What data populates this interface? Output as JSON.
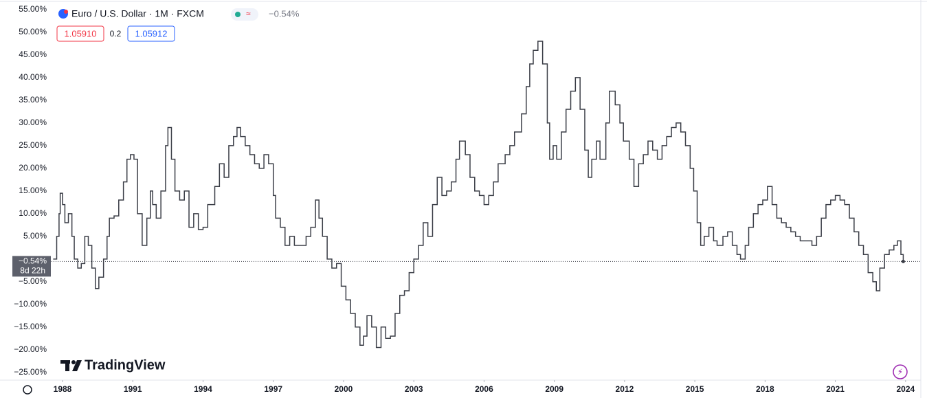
{
  "chart_data": {
    "type": "line",
    "step": true,
    "title": "Euro / U.S. Dollar · 1M · FXCM",
    "change_label": "−0.54%",
    "bid": "1.05910",
    "spread": "0.2",
    "ask": "1.05912",
    "last_value": -0.54,
    "last_label": "−0.54%",
    "countdown": "8d 22h",
    "brand": "TradingView",
    "color": "#3a3d46",
    "xlim": [
      1987.53,
      2024.65
    ],
    "xticks": [
      1988,
      1991,
      1994,
      1997,
      2000,
      2003,
      2006,
      2009,
      2012,
      2015,
      2018,
      2021,
      2024
    ],
    "ylim": [
      -27,
      57.1
    ],
    "yticks": [
      {
        "value": 55,
        "label": "55.00%"
      },
      {
        "value": 50,
        "label": "50.00%"
      },
      {
        "value": 45,
        "label": "45.00%"
      },
      {
        "value": 40,
        "label": "40.00%"
      },
      {
        "value": 35,
        "label": "35.00%"
      },
      {
        "value": 30,
        "label": "30.00%"
      },
      {
        "value": 25,
        "label": "25.00%"
      },
      {
        "value": 20,
        "label": "20.00%"
      },
      {
        "value": 15,
        "label": "15.00%"
      },
      {
        "value": 10,
        "label": "10.00%"
      },
      {
        "value": 5,
        "label": "5.00%"
      },
      {
        "value": -5,
        "label": "−5.00%"
      },
      {
        "value": -10,
        "label": "−10.00%"
      },
      {
        "value": -15,
        "label": "−15.00%"
      },
      {
        "value": -20,
        "label": "−20.00%"
      },
      {
        "value": -25,
        "label": "−25.00%"
      }
    ],
    "x": [
      1987.6,
      1987.75,
      1987.85,
      1987.9,
      1988.0,
      1988.1,
      1988.25,
      1988.4,
      1988.5,
      1988.65,
      1988.8,
      1988.95,
      1989.1,
      1989.25,
      1989.4,
      1989.55,
      1989.75,
      1989.9,
      1990.0,
      1990.2,
      1990.4,
      1990.6,
      1990.75,
      1990.9,
      1991.05,
      1991.2,
      1991.4,
      1991.6,
      1991.75,
      1991.85,
      1992.0,
      1992.2,
      1992.4,
      1992.5,
      1992.65,
      1992.8,
      1993.0,
      1993.2,
      1993.4,
      1993.6,
      1993.8,
      1994.0,
      1994.2,
      1994.5,
      1994.7,
      1994.9,
      1995.1,
      1995.3,
      1995.45,
      1995.6,
      1995.8,
      1996.0,
      1996.2,
      1996.4,
      1996.6,
      1996.8,
      1997.0,
      1997.1,
      1997.3,
      1997.5,
      1997.7,
      1997.9,
      1998.2,
      1998.4,
      1998.6,
      1998.8,
      1998.95,
      1999.1,
      1999.3,
      1999.5,
      1999.7,
      1999.9,
      2000.1,
      2000.3,
      2000.5,
      2000.7,
      2000.85,
      2001.0,
      2001.2,
      2001.4,
      2001.6,
      2001.8,
      2002.0,
      2002.2,
      2002.4,
      2002.6,
      2002.8,
      2003.0,
      2003.2,
      2003.4,
      2003.6,
      2003.8,
      2004.0,
      2004.2,
      2004.4,
      2004.6,
      2004.8,
      2004.95,
      2005.2,
      2005.4,
      2005.6,
      2005.8,
      2006.0,
      2006.2,
      2006.4,
      2006.6,
      2006.9,
      2007.1,
      2007.3,
      2007.6,
      2007.8,
      2007.95,
      2008.1,
      2008.3,
      2008.5,
      2008.7,
      2008.8,
      2008.95,
      2009.1,
      2009.3,
      2009.5,
      2009.7,
      2009.9,
      2010.1,
      2010.3,
      2010.45,
      2010.6,
      2010.8,
      2010.95,
      2011.2,
      2011.35,
      2011.6,
      2011.8,
      2011.95,
      2012.2,
      2012.4,
      2012.6,
      2012.8,
      2013.0,
      2013.2,
      2013.4,
      2013.6,
      2013.8,
      2014.0,
      2014.2,
      2014.4,
      2014.6,
      2014.8,
      2014.95,
      2015.1,
      2015.25,
      2015.4,
      2015.6,
      2015.8,
      2015.95,
      2016.2,
      2016.4,
      2016.6,
      2016.8,
      2016.95,
      2017.15,
      2017.3,
      2017.5,
      2017.7,
      2017.9,
      2018.1,
      2018.3,
      2018.5,
      2018.7,
      2018.9,
      2019.1,
      2019.3,
      2019.5,
      2019.8,
      2020.0,
      2020.2,
      2020.4,
      2020.6,
      2020.8,
      2021.0,
      2021.2,
      2021.4,
      2021.6,
      2021.8,
      2022.0,
      2022.2,
      2022.4,
      2022.6,
      2022.75,
      2022.9,
      2023.1,
      2023.3,
      2023.5,
      2023.65,
      2023.8,
      2023.9
    ],
    "values": [
      0,
      5,
      10,
      14.5,
      12,
      8,
      10,
      5,
      0,
      -2,
      -1,
      5,
      3,
      -2,
      -6.5,
      -4,
      0,
      5,
      9,
      9.5,
      13,
      17,
      22,
      23,
      22,
      10,
      3,
      9,
      15,
      12,
      9,
      15,
      25,
      29,
      22,
      15,
      13,
      15,
      7,
      10,
      6.5,
      7,
      12,
      16,
      21,
      18,
      25,
      27,
      29,
      27,
      25,
      23,
      21,
      20,
      23,
      21,
      14,
      9,
      7,
      3,
      5,
      3,
      3,
      5,
      7,
      13,
      9,
      5,
      0,
      -2,
      -1,
      -6,
      -9,
      -12,
      -15,
      -19,
      -17,
      -12.5,
      -15,
      -19.5,
      -15,
      -17.5,
      -17,
      -12,
      -8,
      -7,
      -3,
      0,
      3,
      8,
      5,
      12,
      18,
      14,
      15,
      17,
      22,
      26,
      23,
      18,
      15,
      14,
      12,
      14,
      17,
      21,
      23,
      25,
      28,
      32,
      38,
      43,
      46,
      48,
      43,
      30,
      22,
      25,
      22,
      28,
      33,
      37,
      40,
      33,
      24,
      18,
      22,
      26,
      22,
      30,
      37,
      34,
      30,
      26,
      22,
      16,
      21,
      23,
      26,
      24,
      22,
      25,
      27,
      29,
      30,
      28,
      25,
      20,
      15,
      8,
      3,
      5,
      7,
      4,
      3,
      5,
      6,
      3,
      1,
      0,
      3,
      7,
      10,
      12,
      13,
      16,
      12,
      9,
      8,
      7,
      6,
      5,
      4,
      4,
      3,
      5,
      9,
      12,
      13,
      14,
      13,
      12,
      9,
      6,
      3,
      1,
      -3,
      -5,
      -7,
      -2,
      1,
      2,
      3,
      4,
      1,
      -0.54
    ]
  }
}
